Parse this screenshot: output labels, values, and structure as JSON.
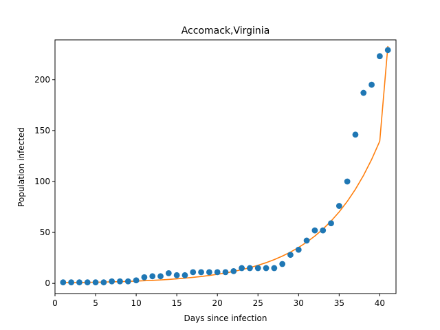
{
  "chart_data": {
    "type": "scatter",
    "title": "Accomack,Virginia",
    "xlabel": "Days since infection",
    "ylabel": "Population infected",
    "xlim": [
      -0.0,
      42.0
    ],
    "ylim": [
      -10,
      239
    ],
    "xticks": [
      0,
      5,
      10,
      15,
      20,
      25,
      30,
      35,
      40
    ],
    "yticks": [
      0,
      50,
      100,
      150,
      200
    ],
    "grid": false,
    "legend": "none",
    "colors": {
      "points": "#1f77b4",
      "fit": "#ff7f0e"
    },
    "series": [
      {
        "kind": "points",
        "x": [
          1,
          2,
          3,
          4,
          5,
          6,
          7,
          8,
          9,
          10,
          11,
          12,
          13,
          14,
          15,
          16,
          17,
          18,
          19,
          20,
          21,
          22,
          23,
          24,
          25,
          26,
          27,
          28,
          29,
          30,
          31,
          32,
          33,
          34,
          35,
          36,
          37,
          38,
          39,
          40,
          41
        ],
        "y": [
          1,
          1,
          1,
          1,
          1,
          1,
          2,
          2,
          2,
          3,
          6,
          7,
          7,
          10,
          8,
          8,
          11,
          11,
          11,
          11,
          11,
          12,
          15,
          15,
          15,
          15,
          15,
          19,
          28,
          33,
          42,
          52,
          52,
          59,
          76,
          100,
          146,
          187,
          195,
          223,
          229
        ]
      },
      {
        "kind": "fit",
        "x": [
          1,
          2,
          3,
          4,
          5,
          6,
          7,
          8,
          9,
          10,
          11,
          12,
          13,
          14,
          15,
          16,
          17,
          18,
          19,
          20,
          21,
          22,
          23,
          24,
          25,
          26,
          27,
          28,
          29,
          30,
          31,
          32,
          33,
          34,
          35,
          36,
          37,
          38,
          39,
          40,
          41
        ],
        "y": [
          0.65,
          0.75,
          0.86,
          0.99,
          1.13,
          1.3,
          1.49,
          1.71,
          1.96,
          2.25,
          2.58,
          2.96,
          3.4,
          3.9,
          4.47,
          5.13,
          5.89,
          6.76,
          7.76,
          8.9,
          10.21,
          11.72,
          13.45,
          15.43,
          17.71,
          20.32,
          23.32,
          26.76,
          30.71,
          35.24,
          40.44,
          46.41,
          53.26,
          61.12,
          70.14,
          80.49,
          92.37,
          106.0,
          121.64,
          139.59,
          233.0
        ]
      }
    ]
  }
}
